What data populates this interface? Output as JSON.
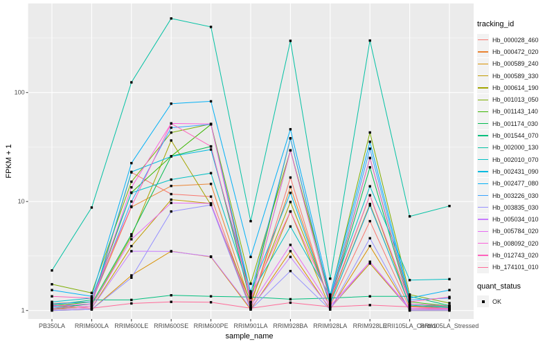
{
  "figure": {
    "background": "#FFFFFF",
    "panel_background": "#EBEBEB",
    "grid_color": "#FFFFFF",
    "tick_color": "#333333",
    "tick_label_color": "#4D4D4D",
    "point_color": "#000000"
  },
  "axes": {
    "x": {
      "title": "sample_name",
      "categories": [
        "PB350LA",
        "RRIM600LA",
        "RRIM600LE",
        "RRIM600SE",
        "RRIM600PE",
        "RRIM901LA",
        "RRIM928BA",
        "RRIM928LA",
        "RRIM928LE",
        "RRII105LA_Control",
        "RRII105LA_Stressed"
      ]
    },
    "y": {
      "title": "FPKM + 1",
      "scale": "log10",
      "ticks": [
        {
          "label": "1",
          "value": 1
        },
        {
          "label": "10",
          "value": 10
        },
        {
          "label": "100",
          "value": 100
        }
      ]
    }
  },
  "legend": {
    "tracking_title": "tracking_id",
    "quant_title": "quant_status",
    "quant_items": [
      {
        "label": "OK",
        "shape": "black-square"
      }
    ],
    "key_background": "#F2F2F2"
  },
  "chart_data": {
    "type": "line",
    "xlabel": "sample_name",
    "ylabel": "FPKM + 1",
    "yscale": "log10",
    "ylim": [
      1,
      650
    ],
    "grid": true,
    "legend_position": "right",
    "point_shape": "square",
    "categories": [
      "PB350LA",
      "RRIM600LA",
      "RRIM600LE",
      "RRIM600SE",
      "RRIM600PE",
      "RRIM901LA",
      "RRIM928BA",
      "RRIM928LA",
      "RRIM928LE",
      "RRII105LA_Control",
      "RRII105LA_Stressed"
    ],
    "series": [
      {
        "name": "Hb_000028_460",
        "color": "#F8766D",
        "values": [
          1.05,
          1.1,
          18.5,
          11.7,
          11.1,
          1.1,
          16.6,
          1.1,
          6.6,
          1.05,
          1.05
        ]
      },
      {
        "name": "Hb_000472_020",
        "color": "#EA8331",
        "values": [
          1.16,
          1.2,
          8.9,
          13.9,
          14.5,
          1.15,
          13.6,
          1.15,
          9.5,
          1.1,
          1.1
        ]
      },
      {
        "name": "Hb_000589_240",
        "color": "#D89000",
        "values": [
          1.0,
          1.02,
          2.1,
          3.5,
          3.1,
          1.02,
          3.5,
          1.02,
          3.9,
          1.0,
          1.0
        ]
      },
      {
        "name": "Hb_000589_330",
        "color": "#C09B00",
        "values": [
          1.02,
          1.05,
          3.9,
          10.4,
          9.6,
          1.05,
          8.1,
          1.05,
          2.7,
          1.02,
          1.02
        ]
      },
      {
        "name": "Hb_000614_190",
        "color": "#A3A500",
        "values": [
          1.03,
          1.1,
          4.8,
          36.3,
          9.3,
          1.2,
          9.9,
          1.2,
          11.4,
          1.1,
          1.05
        ]
      },
      {
        "name": "Hb_001013_050",
        "color": "#7CAE00",
        "values": [
          1.74,
          1.45,
          15.2,
          42.9,
          51.5,
          1.76,
          29.5,
          1.38,
          43.0,
          1.4,
          1.17
        ]
      },
      {
        "name": "Hb_001143_140",
        "color": "#39B600",
        "values": [
          1.1,
          1.2,
          12.1,
          26.0,
          51.0,
          1.3,
          38.0,
          1.25,
          25.1,
          1.2,
          1.1
        ]
      },
      {
        "name": "Hb_001174_030",
        "color": "#00BB4E",
        "values": [
          1.05,
          1.15,
          5.0,
          26.0,
          32.0,
          1.2,
          29.5,
          1.2,
          20.6,
          1.15,
          1.08
        ]
      },
      {
        "name": "Hb_001544_070",
        "color": "#00BF7D",
        "values": [
          1.12,
          1.25,
          1.25,
          1.38,
          1.35,
          1.33,
          1.27,
          1.3,
          1.35,
          1.35,
          1.11
        ]
      },
      {
        "name": "Hb_002000_130",
        "color": "#00C1A3",
        "values": [
          2.33,
          8.8,
          124,
          478,
          400,
          6.6,
          298,
          1.96,
          300,
          7.3,
          9.1
        ]
      },
      {
        "name": "Hb_002010_070",
        "color": "#00BFC4",
        "values": [
          1.2,
          1.3,
          12.0,
          15.9,
          18.2,
          1.4,
          5.9,
          1.35,
          13.8,
          1.9,
          1.94
        ]
      },
      {
        "name": "Hb_002431_090",
        "color": "#00BAE0",
        "values": [
          1.08,
          1.15,
          18.7,
          25.9,
          30.0,
          1.5,
          12.0,
          1.15,
          9.2,
          1.12,
          1.06
        ]
      },
      {
        "name": "Hb_002477_080",
        "color": "#00B0F6",
        "values": [
          1.54,
          1.35,
          22.5,
          79.0,
          83.0,
          3.1,
          46.0,
          1.4,
          35.3,
          1.3,
          1.54
        ]
      },
      {
        "name": "Hb_003226_030",
        "color": "#35A2FF",
        "values": [
          1.15,
          1.2,
          10.0,
          47.6,
          51.0,
          1.45,
          38.0,
          1.3,
          30.5,
          1.25,
          1.3
        ]
      },
      {
        "name": "Hb_003835_030",
        "color": "#9590FF",
        "values": [
          1.0,
          1.02,
          2.0,
          8.1,
          9.3,
          1.02,
          2.3,
          1.02,
          4.6,
          1.0,
          1.0
        ]
      },
      {
        "name": "Hb_005034_010",
        "color": "#C77CFF",
        "values": [
          1.02,
          1.05,
          3.5,
          3.48,
          3.13,
          1.05,
          3.1,
          1.05,
          2.8,
          1.02,
          1.02
        ]
      },
      {
        "name": "Hb_005784_020",
        "color": "#E76BF3",
        "values": [
          1.05,
          1.1,
          4.5,
          9.7,
          9.6,
          1.1,
          4.0,
          1.1,
          2.8,
          1.05,
          1.03
        ]
      },
      {
        "name": "Hb_008092_020",
        "color": "#FA62DB",
        "values": [
          1.1,
          1.15,
          13.5,
          52.0,
          51.5,
          1.2,
          29.5,
          1.2,
          25.0,
          1.15,
          1.1
        ]
      },
      {
        "name": "Hb_012743_020",
        "color": "#FF62BC",
        "values": [
          1.35,
          1.3,
          9.0,
          52.0,
          32.0,
          1.33,
          8.1,
          1.25,
          11.4,
          1.2,
          1.33
        ]
      },
      {
        "name": "Hb_174101_010",
        "color": "#FF6A98",
        "values": [
          1.12,
          1.05,
          1.16,
          1.2,
          1.19,
          1.05,
          1.18,
          1.08,
          1.12,
          1.08,
          1.05
        ]
      }
    ]
  }
}
